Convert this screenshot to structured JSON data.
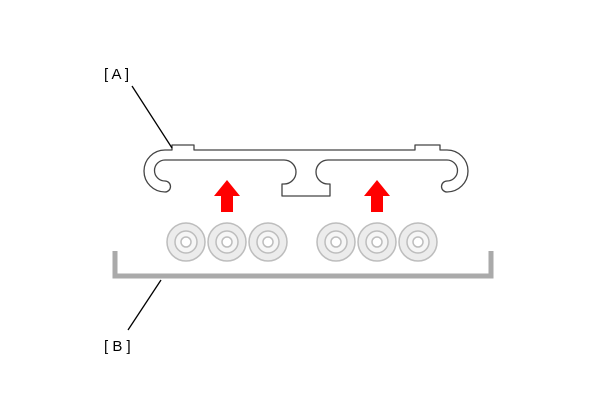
{
  "labels": {
    "part_a": "[ A ]",
    "part_b": "[ B ]"
  },
  "colors": {
    "outline": "#444444",
    "arrow": "#ff0000",
    "tray": "#aaaaaa",
    "ring_outer": "#bdbdbd",
    "ring_fill": "#ececec",
    "ring_inner": "#ffffff"
  },
  "groups": [
    {
      "ring_count": 3,
      "arrow_icon": "up-arrow-icon"
    },
    {
      "ring_count": 3,
      "arrow_icon": "up-arrow-icon"
    }
  ]
}
